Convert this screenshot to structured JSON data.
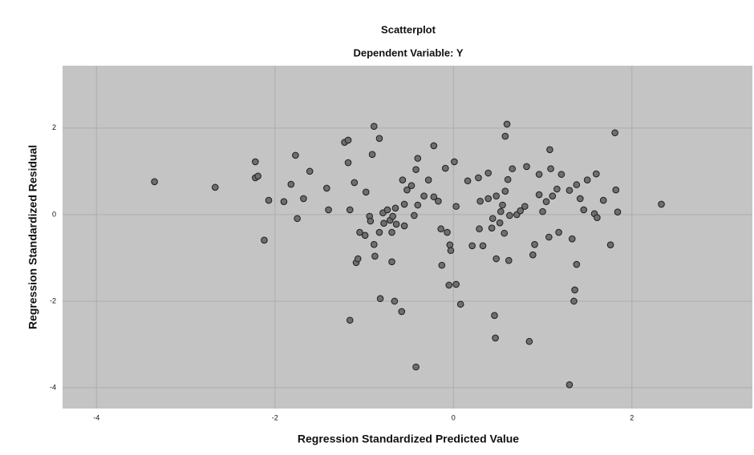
{
  "chart_data": {
    "type": "scatter",
    "title": "Scatterplot",
    "subtitle": "Dependent Variable: Y",
    "x_label": "Regression Standardized Predicted Value",
    "y_label": "Regression Standardized Residual",
    "x": [
      -3.35,
      -2.67,
      -2.22,
      -2.22,
      -2.19,
      -2.12,
      -2.07,
      -1.9,
      -1.82,
      -1.77,
      -1.75,
      -1.68,
      -1.61,
      -1.42,
      -1.4,
      -1.22,
      -1.18,
      -1.18,
      -1.16,
      -1.16,
      -1.11,
      -1.09,
      -1.07,
      -1.05,
      -0.98,
      -0.99,
      -0.94,
      -0.93,
      -0.91,
      -0.89,
      -0.89,
      -0.88,
      -0.83,
      -0.83,
      -0.82,
      -0.79,
      -0.78,
      -0.74,
      -0.71,
      -0.69,
      -0.69,
      -0.68,
      -0.65,
      -0.66,
      -0.64,
      -0.58,
      -0.57,
      -0.55,
      -0.55,
      -0.52,
      -0.47,
      -0.44,
      -0.42,
      -0.4,
      -0.42,
      -0.4,
      -0.33,
      -0.28,
      -0.22,
      -0.22,
      -0.17,
      -0.14,
      -0.13,
      -0.09,
      -0.07,
      -0.04,
      -0.05,
      -0.03,
      0.01,
      0.03,
      0.03,
      0.08,
      0.16,
      0.21,
      0.28,
      0.29,
      0.3,
      0.33,
      0.39,
      0.39,
      0.43,
      0.44,
      0.46,
      0.47,
      0.48,
      0.48,
      0.52,
      0.53,
      0.55,
      0.57,
      0.58,
      0.58,
      0.6,
      0.61,
      0.62,
      0.63,
      0.66,
      0.71,
      0.75,
      0.8,
      0.82,
      0.85,
      0.89,
      0.91,
      0.96,
      0.96,
      1.0,
      1.04,
      1.07,
      1.09,
      1.11,
      1.16,
      1.18,
      1.21,
      1.08,
      1.3,
      1.33,
      1.38,
      1.42,
      1.46,
      1.5,
      1.6,
      1.58,
      1.61,
      1.3,
      1.35,
      1.36,
      1.38,
      1.68,
      1.76,
      1.81,
      1.82,
      1.84,
      2.33
    ],
    "y": [
      0.76,
      0.63,
      1.22,
      0.85,
      0.89,
      -0.59,
      0.33,
      0.3,
      0.7,
      1.37,
      -0.09,
      0.37,
      1.0,
      0.61,
      0.11,
      1.67,
      1.72,
      1.2,
      0.11,
      -2.44,
      0.74,
      -1.11,
      -1.02,
      -0.41,
      0.52,
      -0.48,
      -0.04,
      -0.15,
      1.39,
      2.04,
      -0.69,
      -0.96,
      1.76,
      -0.41,
      -1.94,
      0.04,
      -0.2,
      0.11,
      -0.13,
      -1.09,
      -0.41,
      -0.04,
      0.15,
      -2.0,
      -0.22,
      -2.24,
      0.8,
      0.24,
      -0.26,
      0.57,
      0.67,
      -0.02,
      1.04,
      1.3,
      -3.52,
      0.22,
      0.43,
      0.8,
      1.59,
      0.41,
      0.31,
      -0.33,
      -1.17,
      1.07,
      -0.41,
      -0.7,
      -1.63,
      -0.83,
      1.22,
      -1.61,
      0.19,
      -2.07,
      0.78,
      -0.72,
      0.85,
      -0.33,
      0.31,
      -0.72,
      0.96,
      0.37,
      -0.31,
      -0.09,
      -2.33,
      -2.85,
      -1.02,
      0.43,
      -0.19,
      0.07,
      0.22,
      -0.43,
      1.81,
      0.54,
      2.09,
      0.81,
      -1.06,
      -0.02,
      1.06,
      0.0,
      0.09,
      0.19,
      1.11,
      -2.93,
      -0.93,
      -0.69,
      0.93,
      0.46,
      0.07,
      0.3,
      -0.52,
      1.06,
      0.43,
      0.59,
      -0.41,
      0.93,
      1.5,
      0.56,
      -0.56,
      0.69,
      0.37,
      0.11,
      0.8,
      0.94,
      0.02,
      -0.07,
      -3.93,
      -2.0,
      -1.74,
      -1.15,
      0.33,
      -0.7,
      1.89,
      0.57,
      0.06,
      0.24
    ],
    "xlim": [
      -4.38,
      3.35
    ],
    "ylim": [
      -4.48,
      3.44
    ],
    "xticks": [
      -4,
      -2,
      0,
      2
    ],
    "yticks": [
      2,
      0,
      -2,
      -4
    ],
    "grid": true,
    "color": "#6e6e6e"
  }
}
